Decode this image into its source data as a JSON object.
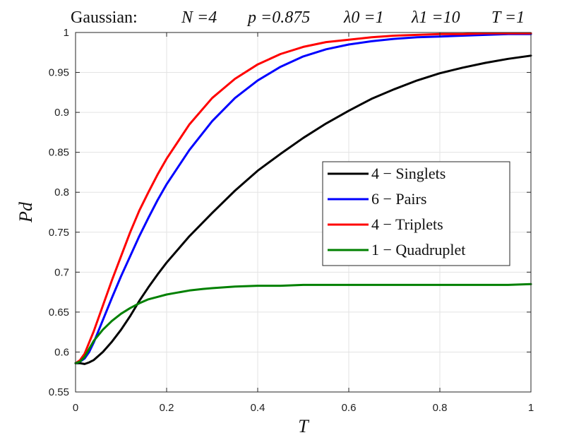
{
  "chart_data": {
    "type": "line",
    "title": "Gaussian:      N =4    p =0.875    λ0 =1    λ1 =10    T =1",
    "title_parts": {
      "label": "Gaussian:",
      "n": "N =4",
      "p": "p =0.875",
      "lambda0": "λ0 =1",
      "lambda1": "λ1 =10",
      "t": "T =1"
    },
    "xlabel": "T",
    "ylabel": "Pd",
    "xlim": [
      0,
      1
    ],
    "ylim": [
      0.55,
      1
    ],
    "xticks": [
      0,
      0.2,
      0.4,
      0.6,
      0.8,
      1
    ],
    "xtick_labels": [
      "0",
      "0.2",
      "0.4",
      "0.6",
      "0.8",
      "1"
    ],
    "yticks": [
      0.55,
      0.6,
      0.65,
      0.7,
      0.75,
      0.8,
      0.85,
      0.9,
      0.95,
      1
    ],
    "ytick_labels": [
      "0.55",
      "0.6",
      "0.65",
      "0.7",
      "0.75",
      "0.8",
      "0.85",
      "0.9",
      "0.95",
      "1"
    ],
    "grid": true,
    "legend_position": "center-right",
    "series": [
      {
        "name": "4 − Singlets",
        "color": "#000000",
        "x": [
          0,
          0.01,
          0.02,
          0.03,
          0.04,
          0.06,
          0.08,
          0.1,
          0.12,
          0.14,
          0.16,
          0.18,
          0.2,
          0.25,
          0.3,
          0.35,
          0.4,
          0.45,
          0.5,
          0.55,
          0.6,
          0.65,
          0.7,
          0.75,
          0.8,
          0.85,
          0.9,
          0.95,
          1
        ],
        "y": [
          0.586,
          0.586,
          0.585,
          0.587,
          0.59,
          0.6,
          0.613,
          0.628,
          0.645,
          0.664,
          0.681,
          0.697,
          0.712,
          0.745,
          0.774,
          0.802,
          0.827,
          0.848,
          0.868,
          0.886,
          0.902,
          0.917,
          0.929,
          0.94,
          0.949,
          0.956,
          0.962,
          0.967,
          0.971
        ]
      },
      {
        "name": "6 − Pairs",
        "color": "#0000ff",
        "x": [
          0,
          0.01,
          0.02,
          0.03,
          0.04,
          0.06,
          0.08,
          0.1,
          0.12,
          0.14,
          0.16,
          0.18,
          0.2,
          0.25,
          0.3,
          0.35,
          0.4,
          0.45,
          0.5,
          0.55,
          0.6,
          0.65,
          0.7,
          0.75,
          0.8,
          0.85,
          0.9,
          0.95,
          1
        ],
        "y": [
          0.586,
          0.588,
          0.592,
          0.6,
          0.612,
          0.64,
          0.668,
          0.695,
          0.72,
          0.745,
          0.768,
          0.79,
          0.81,
          0.853,
          0.889,
          0.918,
          0.94,
          0.957,
          0.97,
          0.979,
          0.985,
          0.989,
          0.992,
          0.994,
          0.995,
          0.996,
          0.997,
          0.998,
          0.998
        ]
      },
      {
        "name": "4 − Triplets",
        "color": "#ff0000",
        "x": [
          0,
          0.01,
          0.02,
          0.03,
          0.04,
          0.06,
          0.08,
          0.1,
          0.12,
          0.14,
          0.16,
          0.18,
          0.2,
          0.25,
          0.3,
          0.35,
          0.4,
          0.45,
          0.5,
          0.55,
          0.6,
          0.65,
          0.7,
          0.75,
          0.8,
          0.85,
          0.9,
          0.95,
          1
        ],
        "y": [
          0.586,
          0.59,
          0.598,
          0.612,
          0.626,
          0.658,
          0.69,
          0.72,
          0.75,
          0.777,
          0.8,
          0.822,
          0.842,
          0.885,
          0.918,
          0.942,
          0.96,
          0.973,
          0.982,
          0.988,
          0.991,
          0.994,
          0.996,
          0.997,
          0.998,
          0.998,
          0.999,
          0.999,
          0.999
        ]
      },
      {
        "name": "1 − Quadruplet",
        "color": "#008000",
        "x": [
          0,
          0.01,
          0.02,
          0.03,
          0.04,
          0.06,
          0.08,
          0.1,
          0.12,
          0.14,
          0.16,
          0.18,
          0.2,
          0.22,
          0.25,
          0.28,
          0.3,
          0.35,
          0.4,
          0.45,
          0.5,
          0.55,
          0.6,
          0.65,
          0.7,
          0.75,
          0.8,
          0.85,
          0.9,
          0.95,
          1
        ],
        "y": [
          0.586,
          0.588,
          0.594,
          0.604,
          0.614,
          0.628,
          0.639,
          0.648,
          0.655,
          0.661,
          0.666,
          0.669,
          0.672,
          0.674,
          0.677,
          0.679,
          0.68,
          0.682,
          0.683,
          0.683,
          0.684,
          0.684,
          0.684,
          0.684,
          0.684,
          0.684,
          0.684,
          0.684,
          0.684,
          0.684,
          0.685
        ]
      }
    ]
  }
}
